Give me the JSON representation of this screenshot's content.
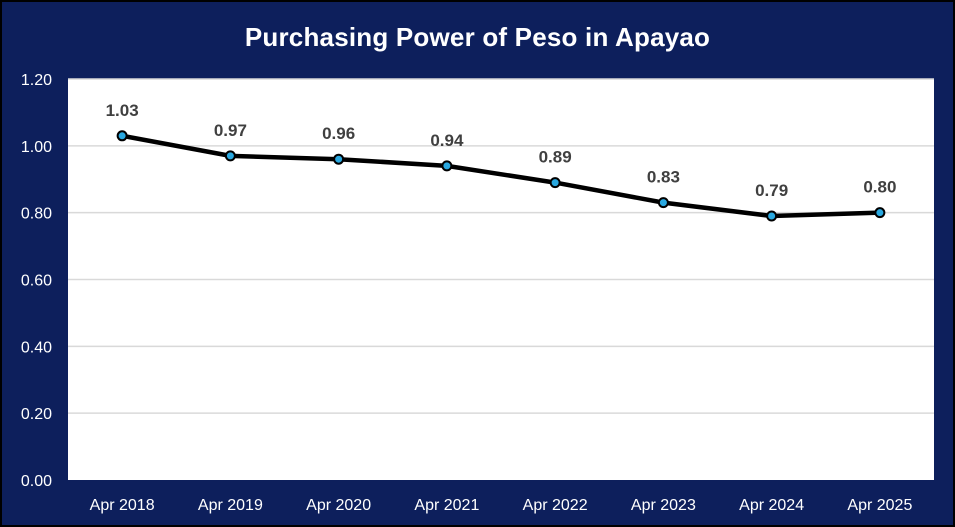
{
  "chart_data": {
    "type": "line",
    "title": "Purchasing Power of Peso in Apayao",
    "xlabel": "",
    "ylabel": "",
    "categories": [
      "Apr 2018",
      "Apr 2019",
      "Apr 2020",
      "Apr 2021",
      "Apr 2022",
      "Apr 2023",
      "Apr 2024",
      "Apr 2025"
    ],
    "values": [
      1.03,
      0.97,
      0.96,
      0.94,
      0.89,
      0.83,
      0.79,
      0.8
    ],
    "data_labels": [
      "1.03",
      "0.97",
      "0.96",
      "0.94",
      "0.89",
      "0.83",
      "0.79",
      "0.80"
    ],
    "ylim": [
      0,
      1.2
    ],
    "yticks": [
      "0.00",
      "0.20",
      "0.40",
      "0.60",
      "0.80",
      "1.00",
      "1.20"
    ],
    "grid": true,
    "legend": "none",
    "colors": {
      "background": "#0d1f5c",
      "plot_area": "#ffffff",
      "line": "#000000",
      "marker": "#29a8e0",
      "gridline": "#d9d9d9",
      "data_label": "#404040",
      "text": "#ffffff"
    }
  }
}
